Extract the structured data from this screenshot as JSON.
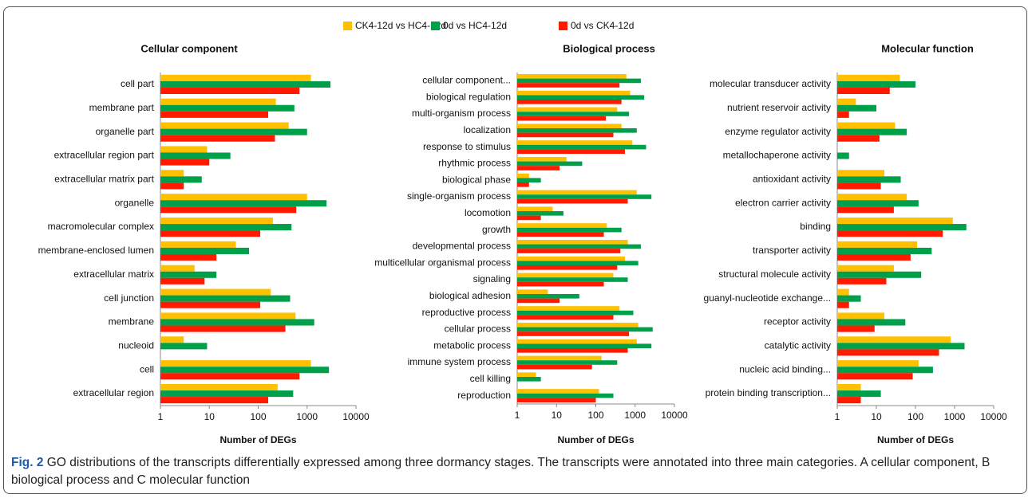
{
  "chart_data": [
    {
      "type": "bar",
      "orientation": "horizontal",
      "title": "Cellular component",
      "x_label": "Number of DEGs",
      "xscale": "log",
      "xlim": [
        1,
        10000
      ],
      "xticks": [
        1,
        10,
        100,
        1000,
        10000
      ],
      "legend": "top",
      "categories": [
        "cell part",
        "membrane part",
        "organelle part",
        "extracellular region part",
        "extracellular matrix part",
        "organelle",
        "macromolecular complex",
        "membrane-enclosed lumen",
        "extracellular matrix",
        "cell junction",
        "membrane",
        "nucleoid",
        "cell",
        "extracellular region"
      ],
      "series": [
        {
          "name": "CK4-12d vs HC4-12d",
          "color": "#ffc000",
          "values": [
            1200,
            230,
            420,
            9,
            3,
            1000,
            200,
            35,
            5,
            180,
            580,
            3,
            1200,
            250
          ]
        },
        {
          "name": "0d vs HC4-12d",
          "color": "#00a04a",
          "values": [
            3000,
            550,
            1000,
            27,
            7,
            2500,
            480,
            65,
            14,
            450,
            1400,
            9,
            2800,
            520
          ]
        },
        {
          "name": "0d vs CK4-12d",
          "color": "#ff1a00",
          "values": [
            700,
            160,
            220,
            10,
            3,
            600,
            110,
            14,
            8,
            110,
            360,
            null,
            700,
            160
          ]
        }
      ]
    },
    {
      "type": "bar",
      "orientation": "horizontal",
      "title": "Biological process",
      "x_label": "Number of DEGs",
      "xscale": "log",
      "xlim": [
        1,
        10000
      ],
      "xticks": [
        1,
        10,
        100,
        1000,
        10000
      ],
      "categories": [
        "cellular component...",
        "biological regulation",
        "multi-organism process",
        "localization",
        "response to stimulus",
        "rhythmic process",
        "biological phase",
        "single-organism process",
        "locomotion",
        "growth",
        "developmental process",
        "multicellular organismal process",
        "signaling",
        "biological adhesion",
        "reproductive process",
        "cellular process",
        "metabolic process",
        "immune system process",
        "cell killing",
        "reproduction"
      ],
      "series": [
        {
          "color": "#ffc000",
          "values": [
            600,
            750,
            350,
            450,
            850,
            18,
            2,
            1100,
            8,
            190,
            650,
            550,
            280,
            6,
            400,
            1200,
            1100,
            140,
            3,
            120
          ]
        },
        {
          "color": "#00a04a",
          "values": [
            1400,
            1700,
            700,
            1100,
            1900,
            45,
            4,
            2600,
            15,
            450,
            1400,
            1200,
            650,
            38,
            900,
            2800,
            2600,
            350,
            4,
            280
          ]
        },
        {
          "color": "#ff1a00",
          "values": [
            400,
            450,
            180,
            280,
            550,
            12,
            2,
            650,
            4,
            160,
            420,
            350,
            160,
            12,
            280,
            700,
            650,
            80,
            null,
            100
          ]
        }
      ]
    },
    {
      "type": "bar",
      "orientation": "horizontal",
      "title": "Molecular function",
      "x_label": "Number of DEGs",
      "xscale": "log",
      "xlim": [
        1,
        10000
      ],
      "xticks": [
        1,
        10,
        100,
        1000,
        10000
      ],
      "categories": [
        "molecular transducer activity",
        "nutrient reservoir activity",
        "enzyme regulator activity",
        "metallochaperone activity",
        "antioxidant activity",
        "electron carrier activity",
        "binding",
        "transporter activity",
        "structural molecule activity",
        "guanyl-nucleotide exchange...",
        "receptor activity",
        "catalytic activity",
        "nucleic acid binding...",
        "protein binding transcription..."
      ],
      "series": [
        {
          "color": "#ffc000",
          "values": [
            40,
            3,
            30,
            null,
            16,
            60,
            900,
            110,
            28,
            2,
            16,
            800,
            120,
            4
          ]
        },
        {
          "color": "#00a04a",
          "values": [
            100,
            10,
            60,
            2,
            42,
            120,
            2000,
            260,
            140,
            4,
            55,
            1800,
            280,
            13
          ]
        },
        {
          "color": "#ff1a00",
          "values": [
            22,
            2,
            12,
            null,
            13,
            28,
            500,
            75,
            18,
            2,
            9,
            400,
            85,
            4
          ]
        }
      ]
    }
  ],
  "caption": {
    "label": "Fig. 2",
    "text": "GO distributions of the transcripts differentially expressed among three dormancy stages. The transcripts were annotated into three main categories. A cellular component, B biological process and C molecular function"
  }
}
